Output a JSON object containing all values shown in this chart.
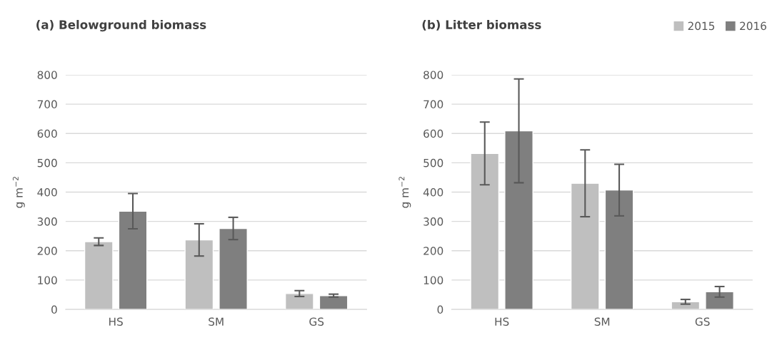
{
  "chart_data": [
    {
      "type": "bar",
      "title": "(a) Belowground biomass",
      "ylabel": "g m$^{−2}$",
      "categories": [
        "HS",
        "SM",
        "GS"
      ],
      "series": [
        {
          "color": "#bfbfbf",
          "values": [
            231,
            237,
            54
          ],
          "errors": [
            13,
            55,
            10
          ]
        },
        {
          "color": "#7f7f7f",
          "values": [
            335,
            276,
            47
          ],
          "errors": [
            60,
            38,
            5
          ]
        }
      ],
      "ylim": [
        0,
        800
      ],
      "yticks": [
        0,
        100,
        200,
        300,
        400,
        500,
        600,
        700,
        800
      ],
      "grid": "y"
    },
    {
      "type": "bar",
      "title": "(b) Litter biomass",
      "ylabel": "g m$^{−2}$",
      "categories": [
        "HS",
        "SM",
        "GS"
      ],
      "series": [
        {
          "name": "2015",
          "color": "#bfbfbf",
          "values": [
            532,
            430,
            26
          ],
          "errors": [
            107,
            114,
            8
          ]
        },
        {
          "name": "2016",
          "color": "#7f7f7f",
          "values": [
            609,
            407,
            60
          ],
          "errors": [
            177,
            88,
            18
          ]
        }
      ],
      "ylim": [
        0,
        800
      ],
      "yticks": [
        0,
        100,
        200,
        300,
        400,
        500,
        600,
        700,
        800
      ],
      "grid": "y",
      "legend": "top right"
    }
  ]
}
